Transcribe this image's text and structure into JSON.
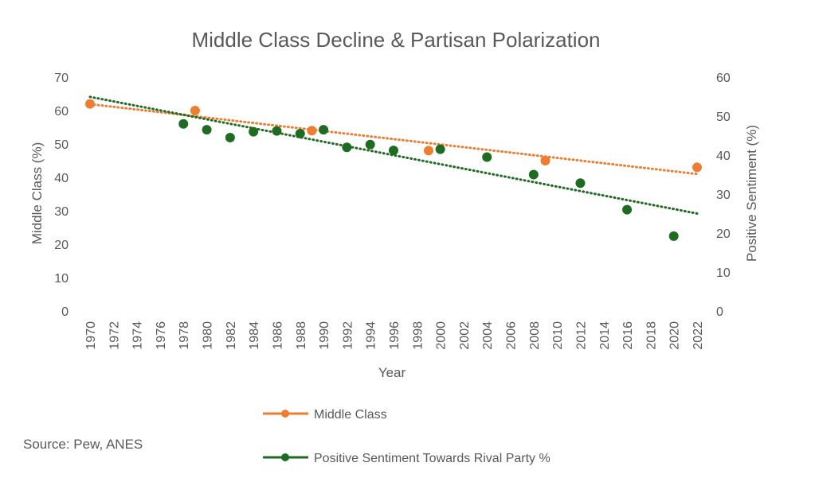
{
  "chart_data": {
    "type": "scatter",
    "title": "Middle Class Decline & Partisan Polarization",
    "xlabel": "Year",
    "ylabel_left": "Middle Class (%)",
    "ylabel_right": "Positive Sentiment (%)",
    "xlim": [
      1970,
      2022
    ],
    "x_ticks": [
      "1970",
      "1972",
      "1974",
      "1976",
      "1978",
      "1980",
      "1982",
      "1984",
      "1986",
      "1988",
      "1990",
      "1992",
      "1994",
      "1996",
      "1998",
      "2000",
      "2002",
      "2004",
      "2006",
      "2008",
      "2010",
      "2012",
      "2014",
      "2016",
      "2018",
      "2020",
      "2022"
    ],
    "ylim_left": [
      0,
      70
    ],
    "y_ticks_left": [
      "0",
      "10",
      "20",
      "30",
      "40",
      "50",
      "60",
      "70"
    ],
    "ylim_right": [
      0,
      60
    ],
    "y_ticks_right": [
      "0",
      "10",
      "20",
      "30",
      "40",
      "50",
      "60"
    ],
    "grid": false,
    "legend_position": "bottom",
    "series": [
      {
        "name": "Middle Class",
        "color": "#ED7D31",
        "axis": "left",
        "trendline": "linear",
        "points": [
          [
            1970,
            62
          ],
          [
            1979,
            60
          ],
          [
            1989,
            54
          ],
          [
            1999,
            48
          ],
          [
            2009,
            45
          ],
          [
            2022,
            43
          ]
        ]
      },
      {
        "name": "Positive Sentiment Towards Rival Party %",
        "color": "#1E6B22",
        "axis": "right",
        "trendline": "linear",
        "points": [
          [
            1978,
            48
          ],
          [
            1980,
            46.5
          ],
          [
            1982,
            44.5
          ],
          [
            1984,
            46
          ],
          [
            1986,
            46.2
          ],
          [
            1988,
            45.5
          ],
          [
            1990,
            46.5
          ],
          [
            1992,
            42
          ],
          [
            1994,
            42.7
          ],
          [
            1996,
            41.2
          ],
          [
            2000,
            41.5
          ],
          [
            2004,
            39.5
          ],
          [
            2008,
            35
          ],
          [
            2012,
            32.8
          ],
          [
            2016,
            26
          ],
          [
            2020,
            19.2
          ]
        ]
      }
    ]
  },
  "source": "Source: Pew, ANES"
}
